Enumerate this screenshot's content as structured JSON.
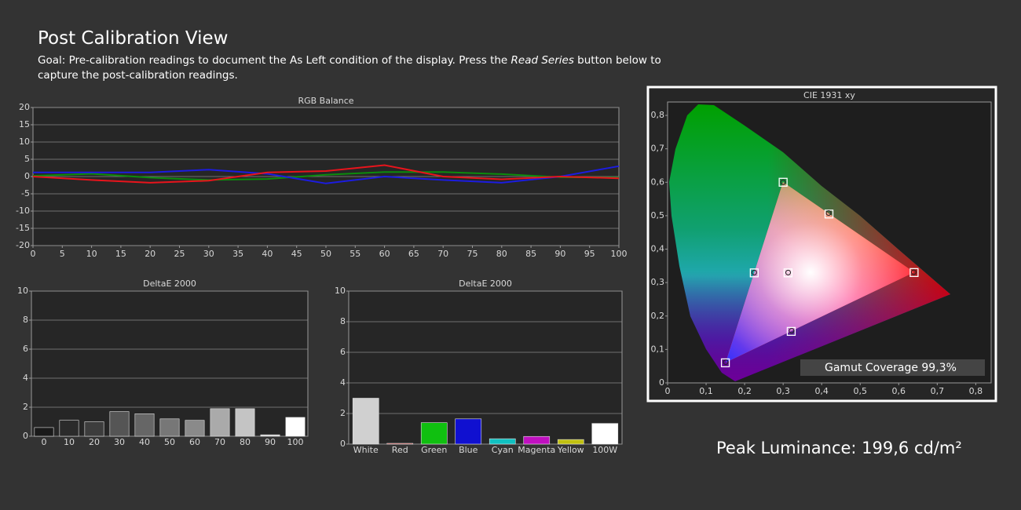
{
  "header": {
    "title": "Post Calibration View",
    "goal_before": "Goal: Pre-calibration readings to document the As Left condition of the display. Press the ",
    "goal_emphasis": "Read Series",
    "goal_after": " button below to capture the post-calibration readings."
  },
  "chart_data": [
    {
      "type": "line",
      "title": "RGB Balance",
      "x": [
        0,
        10,
        20,
        30,
        40,
        50,
        60,
        70,
        80,
        90,
        100
      ],
      "series": [
        {
          "color": "#0c8c0c",
          "values": [
            0.2,
            0.8,
            -0.3,
            -1,
            -0.7,
            0.5,
            1.3,
            1.3,
            0.7,
            -0.2,
            -0.3
          ]
        },
        {
          "color": "#1c1ce0",
          "values": [
            1.2,
            1.2,
            1.2,
            2,
            0.8,
            -2,
            0,
            -1,
            -1.8,
            0,
            3
          ]
        },
        {
          "color": "#e8141c",
          "values": [
            0,
            -1,
            -1.8,
            -1.2,
            1.2,
            1.6,
            3.3,
            0,
            -0.8,
            0,
            -0.5
          ]
        }
      ],
      "xlim": [
        0,
        100
      ],
      "xticks": [
        0,
        5,
        10,
        15,
        20,
        25,
        30,
        35,
        40,
        45,
        50,
        55,
        60,
        65,
        70,
        75,
        80,
        85,
        90,
        95,
        100
      ],
      "ylim": [
        -20,
        20
      ],
      "yticks": [
        -20,
        -15,
        -10,
        -5,
        0,
        5,
        10,
        15,
        20
      ],
      "grid": true
    },
    {
      "type": "bar",
      "title": "DeltaE 2000",
      "categories": [
        "0",
        "10",
        "20",
        "30",
        "40",
        "50",
        "60",
        "70",
        "80",
        "90",
        "100"
      ],
      "values": [
        0.6,
        1.1,
        1.0,
        1.7,
        1.55,
        1.2,
        1.1,
        1.9,
        1.9,
        0.1,
        1.3
      ],
      "colors": [
        "#1a1a1a",
        "#2b2b2b",
        "#3d3d3d",
        "#555555",
        "#666666",
        "#777777",
        "#8a8a8a",
        "#aaaaaa",
        "#c4c4c4",
        "#dcdcdc",
        "#ffffff"
      ],
      "ylim": [
        0,
        10
      ],
      "yticks": [
        0,
        2,
        4,
        6,
        8,
        10
      ],
      "grid": true
    },
    {
      "type": "bar",
      "title": "DeltaE 2000",
      "categories": [
        "White",
        "Red",
        "Green",
        "Blue",
        "Cyan",
        "Magenta",
        "Yellow",
        "100W"
      ],
      "values": [
        3.0,
        0.05,
        1.4,
        1.65,
        0.35,
        0.5,
        0.3,
        1.35
      ],
      "colors": [
        "#d0d0d0",
        "#d01010",
        "#10c010",
        "#1010d0",
        "#10c0c0",
        "#c010c0",
        "#c0c010",
        "#ffffff"
      ],
      "ylim": [
        0,
        10
      ],
      "yticks": [
        0,
        2,
        4,
        6,
        8,
        10
      ],
      "grid": true
    },
    {
      "type": "scatter",
      "title": "CIE 1931 xy",
      "series": [
        {
          "marker": "square",
          "color": "#ffffff",
          "x": [
            0.64,
            0.3,
            0.15,
            0.3127,
            0.225,
            0.321,
            0.419
          ],
          "y": [
            0.33,
            0.6,
            0.06,
            0.329,
            0.329,
            0.154,
            0.505
          ]
        },
        {
          "marker": "circle",
          "color": "#222222",
          "x": [
            0.639,
            0.3,
            0.151,
            0.313,
            0.225,
            0.322,
            0.418
          ],
          "y": [
            0.331,
            0.6,
            0.062,
            0.33,
            0.33,
            0.156,
            0.508
          ]
        }
      ],
      "xlim": [
        0,
        0.84
      ],
      "xticks": [
        0,
        {
          "value": 0.1,
          "label": "0,1"
        },
        {
          "value": 0.2,
          "label": "0,2"
        },
        {
          "value": 0.3,
          "label": "0,3"
        },
        {
          "value": 0.4,
          "label": "0,4"
        },
        {
          "value": 0.5,
          "label": "0,5"
        },
        {
          "value": 0.6,
          "label": "0,6"
        },
        {
          "value": 0.7,
          "label": "0,7"
        },
        {
          "value": 0.8,
          "label": "0,8"
        }
      ],
      "ylim": [
        0,
        0.84
      ],
      "yticks": [
        0,
        {
          "value": 0.1,
          "label": "0,1"
        },
        {
          "value": 0.2,
          "label": "0,2"
        },
        {
          "value": 0.3,
          "label": "0,3"
        },
        {
          "value": 0.4,
          "label": "0,4"
        },
        {
          "value": 0.5,
          "label": "0,5"
        },
        {
          "value": 0.6,
          "label": "0,6"
        },
        {
          "value": 0.7,
          "label": "0,7"
        },
        {
          "value": 0.8,
          "label": "0,8"
        }
      ],
      "grid": false
    }
  ],
  "gamut_coverage": "Gamut Coverage 99,3%",
  "peak_luminance": "Peak Luminance: 199,6 cd/m²"
}
